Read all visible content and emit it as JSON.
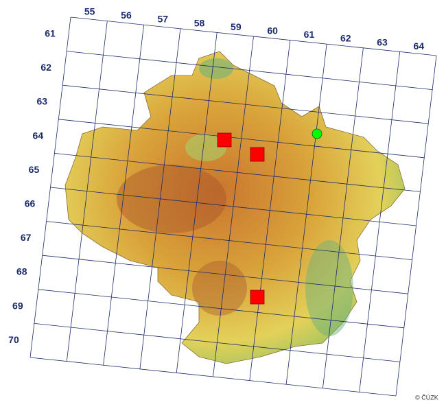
{
  "map": {
    "column_labels": [
      "55",
      "56",
      "57",
      "58",
      "59",
      "60",
      "61",
      "62",
      "63",
      "64"
    ],
    "row_labels": [
      "61",
      "62",
      "63",
      "64",
      "65",
      "66",
      "67",
      "68",
      "69",
      "70"
    ],
    "copyright": "© ČÚZK"
  }
}
